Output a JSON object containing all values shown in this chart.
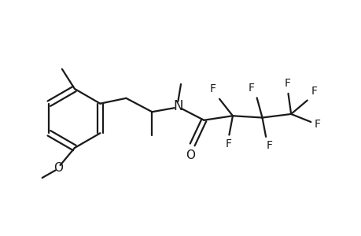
{
  "background_color": "#ffffff",
  "line_color": "#1a1a1a",
  "line_width": 1.6,
  "font_size": 10,
  "figsize": [
    4.6,
    3.0
  ],
  "dpi": 100,
  "xlim": [
    0,
    10
  ],
  "ylim": [
    0,
    6.52
  ]
}
